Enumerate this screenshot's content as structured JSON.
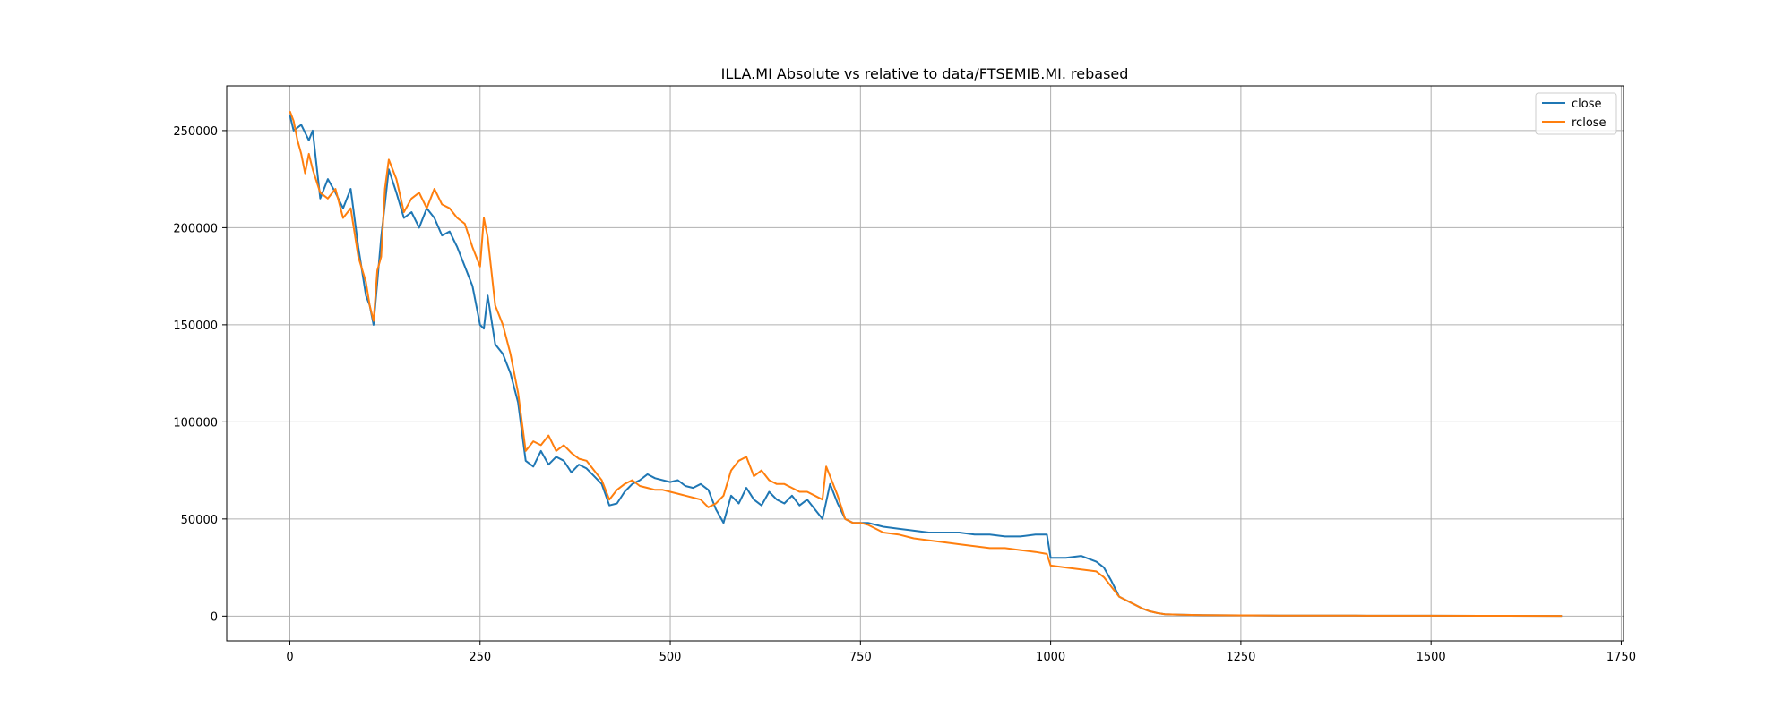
{
  "chart_data": {
    "type": "line",
    "title": "ILLA.MI Absolute vs relative to data/FTSEMIB.MI. rebased",
    "xlabel": "",
    "ylabel": "",
    "xlim": [
      -83,
      1753
    ],
    "ylim": [
      -12750,
      273000
    ],
    "xticks": [
      0,
      250,
      500,
      750,
      1000,
      1250,
      1500,
      1750
    ],
    "xtick_labels": [
      "0",
      "250",
      "500",
      "750",
      "1000",
      "1250",
      "1500",
      "1750"
    ],
    "yticks": [
      0,
      50000,
      100000,
      150000,
      200000,
      250000
    ],
    "ytick_labels": [
      "0",
      "50000",
      "100000",
      "150000",
      "200000",
      "250000"
    ],
    "grid": true,
    "legend_position": "top-right",
    "series": [
      {
        "name": "close",
        "color": "#1f77b4",
        "x": [
          0,
          5,
          15,
          25,
          30,
          40,
          50,
          60,
          70,
          80,
          90,
          100,
          105,
          110,
          115,
          120,
          130,
          140,
          150,
          160,
          170,
          180,
          190,
          200,
          210,
          220,
          230,
          240,
          250,
          255,
          260,
          270,
          280,
          290,
          300,
          310,
          320,
          330,
          340,
          350,
          360,
          370,
          380,
          390,
          400,
          410,
          420,
          430,
          440,
          450,
          460,
          470,
          480,
          490,
          500,
          510,
          520,
          530,
          540,
          550,
          560,
          570,
          580,
          590,
          600,
          610,
          620,
          630,
          640,
          650,
          660,
          670,
          680,
          690,
          700,
          710,
          720,
          730,
          740,
          750,
          760,
          780,
          800,
          820,
          840,
          860,
          880,
          900,
          920,
          940,
          960,
          980,
          995,
          1000,
          1020,
          1040,
          1060,
          1070,
          1080,
          1090,
          1100,
          1110,
          1120,
          1130,
          1140,
          1150,
          1170,
          1200,
          1250,
          1300,
          1400,
          1500,
          1600,
          1672
        ],
        "values": [
          258000,
          250000,
          253000,
          245000,
          250000,
          215000,
          225000,
          218000,
          210000,
          220000,
          190000,
          165000,
          160000,
          150000,
          172000,
          195000,
          230000,
          218000,
          205000,
          208000,
          200000,
          210000,
          205000,
          196000,
          198000,
          190000,
          180000,
          170000,
          150000,
          148000,
          165000,
          140000,
          135000,
          125000,
          110000,
          80000,
          77000,
          85000,
          78000,
          82000,
          80000,
          74000,
          78000,
          76000,
          72000,
          68000,
          57000,
          58000,
          64000,
          68000,
          70000,
          73000,
          71000,
          70000,
          69000,
          70000,
          67000,
          66000,
          68000,
          65000,
          55000,
          48000,
          62000,
          58000,
          66000,
          60000,
          57000,
          64000,
          60000,
          58000,
          62000,
          57000,
          60000,
          55000,
          50000,
          68000,
          58000,
          50000,
          48000,
          48000,
          48000,
          46000,
          45000,
          44000,
          43000,
          43000,
          43000,
          42000,
          42000,
          41000,
          41000,
          42000,
          42000,
          30000,
          30000,
          31000,
          28000,
          25000,
          18000,
          10000,
          8000,
          6000,
          4000,
          2500,
          1600,
          1000,
          700,
          500,
          400,
          300,
          250,
          200,
          150,
          120
        ]
      },
      {
        "name": "rclose",
        "color": "#ff7f0e",
        "x": [
          0,
          5,
          10,
          15,
          20,
          25,
          30,
          40,
          50,
          60,
          70,
          80,
          90,
          100,
          105,
          110,
          115,
          120,
          125,
          130,
          140,
          150,
          160,
          170,
          180,
          190,
          200,
          210,
          220,
          230,
          240,
          250,
          255,
          260,
          270,
          280,
          290,
          300,
          310,
          320,
          330,
          340,
          350,
          360,
          370,
          380,
          390,
          400,
          410,
          420,
          430,
          440,
          450,
          460,
          470,
          480,
          490,
          500,
          510,
          520,
          530,
          540,
          550,
          560,
          570,
          580,
          590,
          600,
          610,
          620,
          630,
          640,
          650,
          660,
          670,
          680,
          690,
          700,
          705,
          710,
          720,
          730,
          740,
          750,
          760,
          780,
          800,
          820,
          840,
          860,
          880,
          900,
          920,
          940,
          960,
          980,
          995,
          1000,
          1020,
          1040,
          1060,
          1070,
          1080,
          1090,
          1100,
          1110,
          1120,
          1130,
          1140,
          1150,
          1170,
          1200,
          1250,
          1300,
          1400,
          1500,
          1600,
          1672
        ],
        "values": [
          260000,
          255000,
          245000,
          238000,
          228000,
          238000,
          230000,
          218000,
          215000,
          220000,
          205000,
          210000,
          185000,
          172000,
          160000,
          152000,
          178000,
          185000,
          220000,
          235000,
          225000,
          208000,
          215000,
          218000,
          210000,
          220000,
          212000,
          210000,
          205000,
          202000,
          190000,
          180000,
          205000,
          195000,
          160000,
          150000,
          135000,
          115000,
          85000,
          90000,
          88000,
          93000,
          85000,
          88000,
          84000,
          81000,
          80000,
          75000,
          70000,
          60000,
          65000,
          68000,
          70000,
          67000,
          66000,
          65000,
          65000,
          64000,
          63000,
          62000,
          61000,
          60000,
          56000,
          58000,
          62000,
          75000,
          80000,
          82000,
          72000,
          75000,
          70000,
          68000,
          68000,
          66000,
          64000,
          64000,
          62000,
          60000,
          77000,
          72000,
          62000,
          50000,
          48000,
          48000,
          47000,
          43000,
          42000,
          40000,
          39000,
          38000,
          37000,
          36000,
          35000,
          35000,
          34000,
          33000,
          32000,
          26000,
          25000,
          24000,
          23000,
          20000,
          15000,
          10000,
          8000,
          6000,
          4000,
          2500,
          1600,
          1000,
          700,
          500,
          400,
          300,
          250,
          200,
          150,
          120
        ]
      }
    ]
  }
}
